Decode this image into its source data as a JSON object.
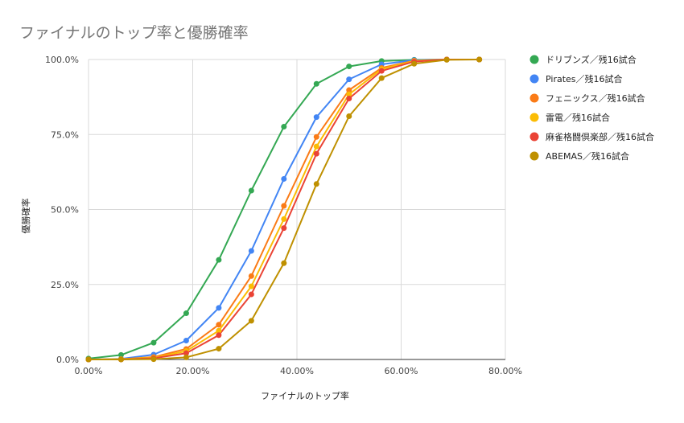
{
  "chart_data": {
    "type": "line",
    "title": "ファイナルのトップ率と優勝確率",
    "xlabel": "ファイナルのトップ率",
    "ylabel": "優勝確率",
    "xlim": [
      0,
      80
    ],
    "ylim": [
      0,
      100
    ],
    "x_ticks": [
      "0.00%",
      "20.00%",
      "40.00%",
      "60.00%",
      "80.00%"
    ],
    "y_ticks": [
      "0.0%",
      "25.0%",
      "50.0%",
      "75.0%",
      "100.0%"
    ],
    "grid": true,
    "legend_position": "right",
    "x": [
      0,
      6.25,
      12.5,
      18.75,
      25,
      31.25,
      37.5,
      43.75,
      50,
      56.25,
      62.5,
      68.75,
      75
    ],
    "series": [
      {
        "name": "ドリブンズ／残16試合",
        "color": "#34a853",
        "values": [
          0.3,
          1.5,
          5.6,
          15.4,
          33.2,
          56.3,
          77.6,
          91.9,
          97.7,
          99.5,
          99.9,
          100,
          100
        ]
      },
      {
        "name": "Pirates／残16試合",
        "color": "#4285f4",
        "values": [
          0.0,
          0.2,
          1.6,
          6.3,
          17.2,
          36.2,
          60.2,
          80.8,
          93.4,
          98.4,
          99.8,
          100,
          100
        ]
      },
      {
        "name": "フェニックス／残16試合",
        "color": "#fa7b17",
        "values": [
          0.0,
          0.1,
          0.8,
          3.5,
          11.6,
          27.8,
          51.2,
          74.2,
          89.8,
          97.2,
          99.6,
          100,
          100
        ]
      },
      {
        "name": "雷電／残16試合",
        "color": "#fbbc04",
        "values": [
          0.0,
          0.1,
          0.6,
          2.8,
          9.6,
          24.4,
          46.8,
          71.0,
          88.4,
          96.8,
          99.5,
          100,
          100
        ]
      },
      {
        "name": "麻雀格闘倶楽部／残16試合",
        "color": "#ea4335",
        "values": [
          0.0,
          0.0,
          0.4,
          2.1,
          8.1,
          21.7,
          43.8,
          68.6,
          87.0,
          96.2,
          99.3,
          100,
          100
        ]
      },
      {
        "name": "ABEMAS／残16試合",
        "color": "#bf9000",
        "values": [
          0.0,
          0.0,
          0.1,
          0.7,
          3.6,
          12.9,
          32.1,
          58.5,
          81.1,
          93.8,
          98.6,
          99.9,
          100
        ]
      }
    ]
  }
}
